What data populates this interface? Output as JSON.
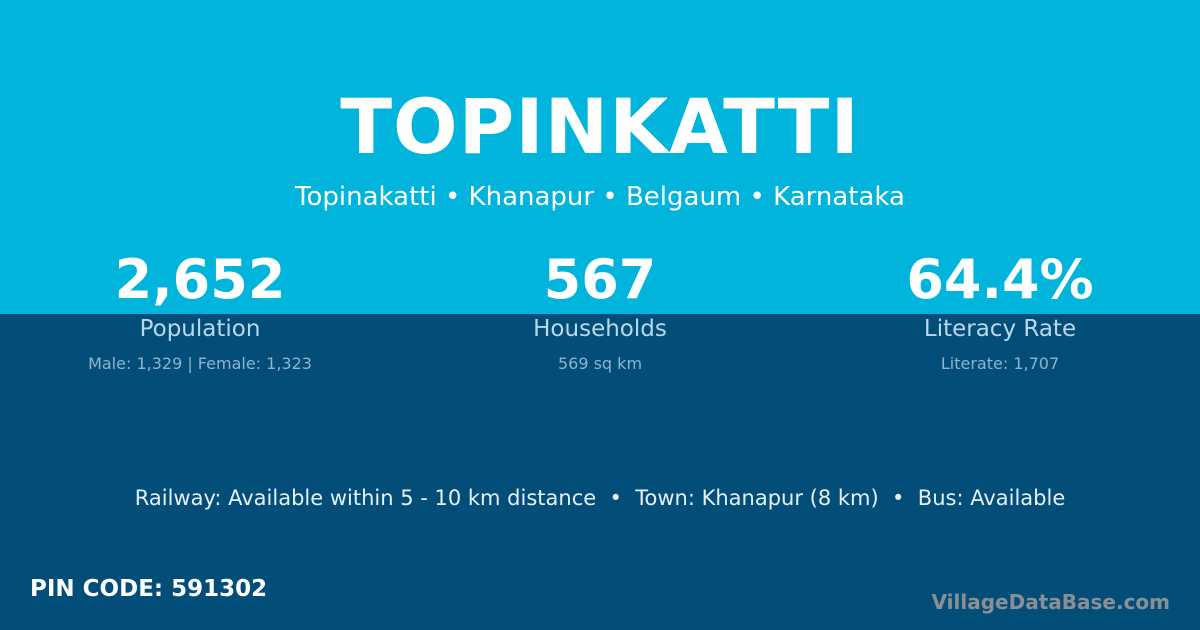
{
  "colors": {
    "top_band": "#00b4dc",
    "bottom_band": "#034d79"
  },
  "title": "TOPINKATTI",
  "breadcrumb": "Topinakatti • Khanapur • Belgaum • Karnataka",
  "stats": [
    {
      "value": "2,652",
      "label": "Population",
      "sub": "Male: 1,329 | Female: 1,323"
    },
    {
      "value": "567",
      "label": "Households",
      "sub": "569 sq km"
    },
    {
      "value": "64.4%",
      "label": "Literacy Rate",
      "sub": "Literate: 1,707"
    }
  ],
  "facts": "Railway: Available within 5 - 10 km distance  •  Town: Khanapur (8 km)  •  Bus: Available",
  "pin_code": "PIN CODE: 591302",
  "brand": "VillageDataBase.com"
}
